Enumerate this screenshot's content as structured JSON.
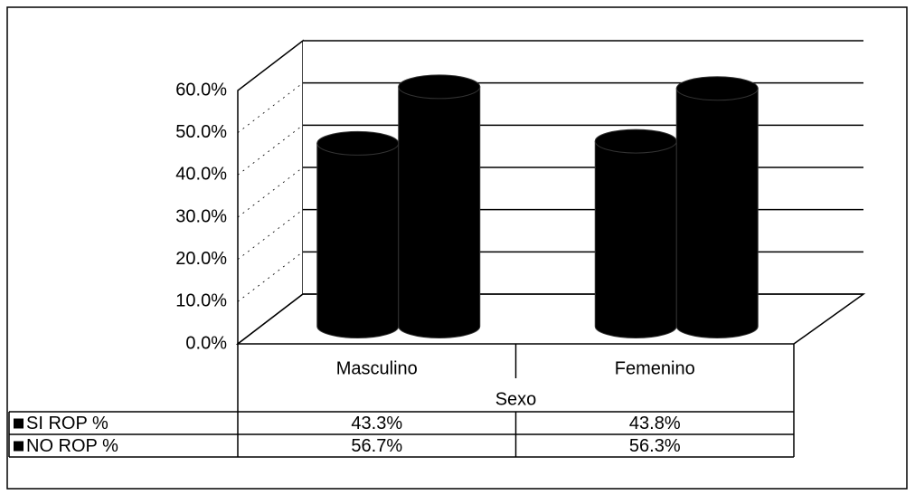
{
  "chart_data": {
    "type": "bar3d",
    "categories": [
      "Masculino",
      "Femenino"
    ],
    "x_label": "Sexo",
    "series": [
      {
        "name": "SI ROP %",
        "color": "#000000",
        "values": [
          43.3,
          43.8
        ],
        "value_labels": [
          "43.3%",
          "43.8%"
        ]
      },
      {
        "name": "NO ROP %",
        "color": "#000000",
        "values": [
          56.7,
          56.3
        ],
        "value_labels": [
          "56.7%",
          "56.3%"
        ]
      }
    ],
    "ylim": [
      0,
      60
    ],
    "yticks": [
      {
        "value": 0,
        "label": "0.0%"
      },
      {
        "value": 10,
        "label": "10.0%"
      },
      {
        "value": 20,
        "label": "20.0%"
      },
      {
        "value": 30,
        "label": "30.0%"
      },
      {
        "value": 40,
        "label": "40.0%"
      },
      {
        "value": 50,
        "label": "50.0%"
      },
      {
        "value": 60,
        "label": "60.0%"
      }
    ],
    "grid": true
  }
}
